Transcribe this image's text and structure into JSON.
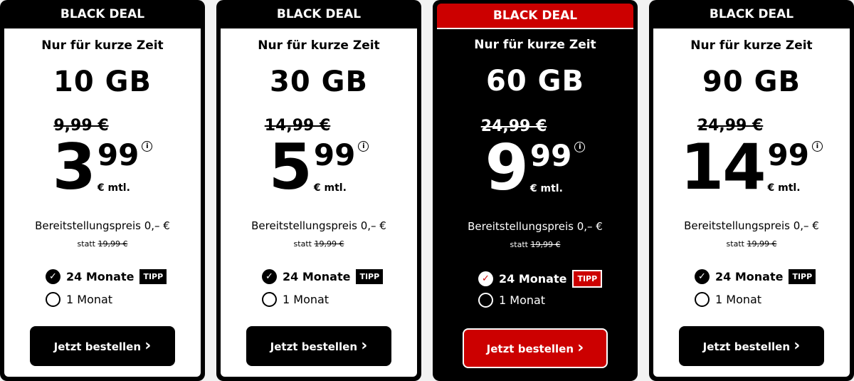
{
  "colors": {
    "accent": "#cc0000",
    "dark": "#000000"
  },
  "common": {
    "badge": "BLACK DEAL",
    "subtitle": "Nur für kurze Zeit",
    "unit": "€ mtl.",
    "info_icon": "i",
    "setup": "Bereitstellungspreis 0,– €",
    "statt": "statt",
    "setup_old": "19,99 €",
    "opt24": "24 Monate",
    "tipp": "TIPP",
    "opt1": "1 Monat",
    "cta": "Jetzt bestellen",
    "cta_icon": "›",
    "check_icon": "✓"
  },
  "plans": [
    {
      "data": "10 GB",
      "old_price": "9,99 €",
      "euros": "3",
      "cents": "99",
      "highlighted": false
    },
    {
      "data": "30 GB",
      "old_price": "14,99 €",
      "euros": "5",
      "cents": "99",
      "highlighted": false
    },
    {
      "data": "60 GB",
      "old_price": "24,99 €",
      "euros": "9",
      "cents": "99",
      "highlighted": true
    },
    {
      "data": "90 GB",
      "old_price": "24,99 €",
      "euros": "14",
      "cents": "99",
      "highlighted": false
    }
  ]
}
